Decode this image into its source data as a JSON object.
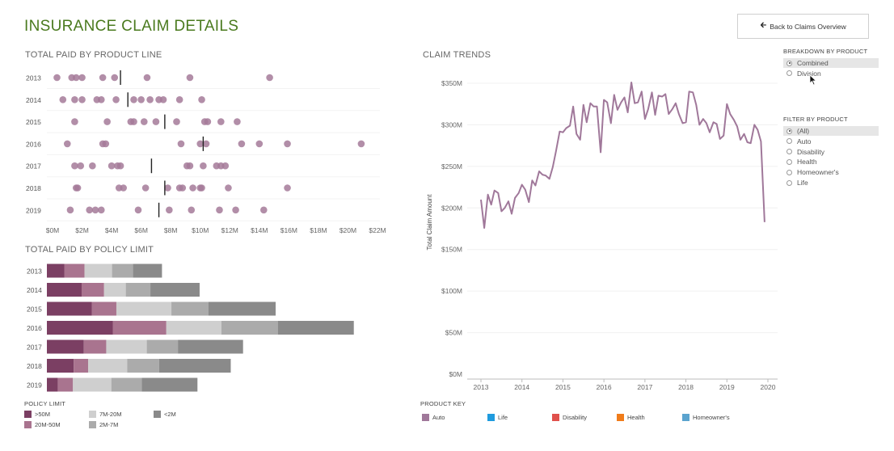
{
  "header": {
    "title": "INSURANCE CLAIM DETAILS",
    "back_label": "Back to Claims Overview",
    "back_icon": "left-arrow-icon"
  },
  "dot_section": {
    "title": "TOTAL PAID BY PRODUCT LINE"
  },
  "bar_section": {
    "title": "TOTAL PAID BY POLICY LIMIT"
  },
  "trend_section": {
    "title": "CLAIM TRENDS"
  },
  "breakdown": {
    "title": "BREAKDOWN BY PRODUCT",
    "options": [
      {
        "label": "Combined",
        "selected": true
      },
      {
        "label": "Division",
        "selected": false
      }
    ]
  },
  "filter": {
    "title": "FILTER BY PRODUCT",
    "options": [
      {
        "label": "(All)",
        "selected": true
      },
      {
        "label": "Auto",
        "selected": false
      },
      {
        "label": "Disability",
        "selected": false
      },
      {
        "label": "Health",
        "selected": false
      },
      {
        "label": "Homeowner's",
        "selected": false
      },
      {
        "label": "Life",
        "selected": false
      }
    ]
  },
  "policy_legend": {
    "title": "POLICY LIMIT",
    "items": [
      {
        "label": ">50M",
        "color": "#7b3f63"
      },
      {
        "label": "7M-20M",
        "color": "#cfcfcf"
      },
      {
        "label": "<2M",
        "color": "#8a8a8a"
      },
      {
        "label": "20M-50M",
        "color": "#a9748f"
      },
      {
        "label": "2M-7M",
        "color": "#ababab"
      }
    ]
  },
  "product_key": {
    "title": "PRODUCT KEY",
    "items": [
      {
        "label": "Auto",
        "color": "#a0789a"
      },
      {
        "label": "Life",
        "color": "#1f9bde"
      },
      {
        "label": "Disability",
        "color": "#e0514c"
      },
      {
        "label": "Health",
        "color": "#f07c1a"
      },
      {
        "label": "Homeowner's",
        "color": "#5ba4cf"
      }
    ]
  },
  "chart_data": [
    {
      "type": "scatter",
      "title": "TOTAL PAID BY PRODUCT LINE",
      "categories": [
        "2013",
        "2014",
        "2015",
        "2016",
        "2017",
        "2018",
        "2019"
      ],
      "x_ticks": [
        "$0M",
        "$2M",
        "$4M",
        "$6M",
        "$8M",
        "$10M",
        "$12M",
        "$14M",
        "$16M",
        "$18M",
        "$20M",
        "$22M"
      ],
      "xlim": [
        0,
        22
      ],
      "points": [
        [
          0.3,
          1.3,
          1.6,
          2.0,
          3.4,
          4.2,
          6.4,
          9.3,
          14.7
        ],
        [
          0.7,
          1.5,
          2.0,
          3.0,
          3.3,
          4.3,
          5.5,
          6.0,
          6.6,
          7.2,
          7.5,
          8.6,
          10.1
        ],
        [
          1.5,
          3.7,
          5.3,
          5.5,
          6.2,
          7.0,
          8.4,
          10.3,
          10.5,
          11.4,
          12.5
        ],
        [
          1.0,
          3.4,
          3.6,
          8.7,
          10.0,
          10.4,
          12.8,
          14.0,
          15.9,
          20.9
        ],
        [
          1.5,
          1.9,
          2.7,
          4.0,
          4.4,
          4.6,
          9.1,
          9.3,
          10.2,
          11.1,
          11.4,
          11.7
        ],
        [
          1.6,
          1.7,
          4.5,
          4.8,
          6.3,
          7.8,
          8.6,
          8.8,
          9.5,
          10.0,
          10.1,
          11.9,
          15.9
        ],
        [
          1.2,
          2.5,
          2.9,
          3.3,
          5.8,
          7.9,
          9.4,
          11.3,
          12.4,
          14.3
        ]
      ],
      "reference_lines": [
        4.6,
        5.1,
        7.6,
        10.2,
        6.7,
        7.6,
        7.2
      ],
      "color": "#a57a99"
    },
    {
      "type": "bar",
      "title": "TOTAL PAID BY POLICY LIMIT",
      "stacked": true,
      "orientation": "horizontal",
      "categories": [
        "2013",
        "2014",
        "2015",
        "2016",
        "2017",
        "2018",
        "2019"
      ],
      "series": [
        {
          "name": ">50M",
          "values": [
            2.4,
            4.8,
            6.2,
            9.1,
            5.1,
            3.7,
            1.5
          ]
        },
        {
          "name": "20M-50M",
          "values": [
            2.8,
            3.1,
            3.4,
            7.4,
            3.1,
            2.0,
            2.1
          ]
        },
        {
          "name": "7M-20M",
          "values": [
            3.8,
            3.0,
            7.6,
            7.6,
            5.6,
            5.4,
            5.3
          ]
        },
        {
          "name": "2M-7M",
          "values": [
            2.9,
            3.4,
            5.1,
            7.8,
            4.3,
            4.4,
            4.2
          ]
        },
        {
          "name": "<2M",
          "values": [
            4.0,
            6.8,
            9.3,
            10.5,
            9.0,
            9.9,
            7.7
          ]
        }
      ],
      "colors": [
        "#7b3f63",
        "#a9748f",
        "#cfcfcf",
        "#ababab",
        "#8a8a8a"
      ],
      "xlim": [
        0,
        45
      ]
    },
    {
      "type": "line",
      "title": "CLAIM TRENDS",
      "ylabel": "Total Claim Amount",
      "y_ticks": [
        "$0M",
        "$50M",
        "$100M",
        "$150M",
        "$200M",
        "$250M",
        "$300M",
        "$350M"
      ],
      "ylim": [
        0,
        350
      ],
      "x_ticks": [
        "2013",
        "2014",
        "2015",
        "2016",
        "2017",
        "2018",
        "2019",
        "2020"
      ],
      "xlim": [
        2013,
        2020
      ],
      "color": "#a0789a",
      "x": [
        2013.0,
        2013.08,
        2013.17,
        2013.25,
        2013.33,
        2013.42,
        2013.5,
        2013.58,
        2013.67,
        2013.75,
        2013.83,
        2013.92,
        2014.0,
        2014.08,
        2014.17,
        2014.25,
        2014.33,
        2014.42,
        2014.5,
        2014.58,
        2014.67,
        2014.75,
        2014.83,
        2014.92,
        2015.0,
        2015.08,
        2015.17,
        2015.25,
        2015.33,
        2015.42,
        2015.5,
        2015.58,
        2015.67,
        2015.75,
        2015.83,
        2015.92,
        2016.0,
        2016.08,
        2016.17,
        2016.25,
        2016.33,
        2016.42,
        2016.5,
        2016.58,
        2016.67,
        2016.75,
        2016.83,
        2016.92,
        2017.0,
        2017.08,
        2017.17,
        2017.25,
        2017.33,
        2017.42,
        2017.5,
        2017.58,
        2017.67,
        2017.75,
        2017.83,
        2017.92,
        2018.0,
        2018.08,
        2018.17,
        2018.25,
        2018.33,
        2018.42,
        2018.5,
        2018.58,
        2018.67,
        2018.75,
        2018.83,
        2018.92,
        2019.0,
        2019.08,
        2019.17,
        2019.25,
        2019.33,
        2019.42,
        2019.5,
        2019.58,
        2019.67,
        2019.75,
        2019.83,
        2019.92
      ],
      "values": [
        210,
        176,
        216,
        204,
        221,
        218,
        196,
        200,
        208,
        193,
        212,
        218,
        228,
        222,
        207,
        233,
        227,
        244,
        240,
        239,
        235,
        249,
        268,
        292,
        291,
        296,
        299,
        322,
        289,
        282,
        324,
        303,
        326,
        322,
        322,
        267,
        330,
        327,
        302,
        336,
        318,
        327,
        333,
        315,
        351,
        326,
        327,
        340,
        307,
        319,
        339,
        312,
        335,
        334,
        337,
        313,
        319,
        326,
        313,
        302,
        303,
        340,
        339,
        324,
        300,
        307,
        302,
        291,
        303,
        301,
        283,
        287,
        325,
        313,
        306,
        298,
        282,
        289,
        279,
        278,
        300,
        294,
        280,
        183
      ]
    }
  ]
}
